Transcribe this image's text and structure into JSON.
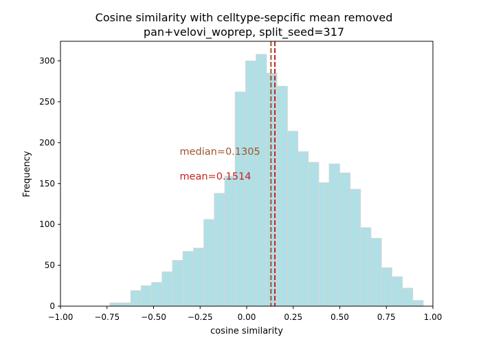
{
  "chart_data": {
    "type": "bar",
    "title_line1": "Cosine similarity with celltype-sepcific mean removed",
    "title_line2": "pan+velovi_woprep, split_seed=317",
    "xlabel": "cosine similarity",
    "ylabel": "Frequency",
    "xlim": [
      -1.0,
      1.0
    ],
    "ylim": [
      0,
      324
    ],
    "xticks": [
      -1.0,
      -0.75,
      -0.5,
      -0.25,
      0.0,
      0.25,
      0.5,
      0.75,
      1.0
    ],
    "xtick_labels": [
      "−1.00",
      "−0.75",
      "−0.50",
      "−0.25",
      "0.00",
      "0.25",
      "0.50",
      "0.75",
      "1.00"
    ],
    "yticks": [
      0,
      50,
      100,
      150,
      200,
      250,
      300
    ],
    "ytick_labels": [
      "0",
      "50",
      "100",
      "150",
      "200",
      "250",
      "300"
    ],
    "bin_width": 0.0561,
    "bins": [
      {
        "x0": -0.7349,
        "count": 4
      },
      {
        "x0": -0.6788,
        "count": 4
      },
      {
        "x0": -0.6227,
        "count": 19
      },
      {
        "x0": -0.5666,
        "count": 25
      },
      {
        "x0": -0.5105,
        "count": 29
      },
      {
        "x0": -0.4544,
        "count": 42
      },
      {
        "x0": -0.3983,
        "count": 56
      },
      {
        "x0": -0.3422,
        "count": 67
      },
      {
        "x0": -0.2861,
        "count": 71
      },
      {
        "x0": -0.23,
        "count": 106
      },
      {
        "x0": -0.1739,
        "count": 138
      },
      {
        "x0": -0.1178,
        "count": 159
      },
      {
        "x0": -0.0617,
        "count": 262
      },
      {
        "x0": -0.0056,
        "count": 300
      },
      {
        "x0": 0.0505,
        "count": 308
      },
      {
        "x0": 0.1066,
        "count": 285
      },
      {
        "x0": 0.1627,
        "count": 269
      },
      {
        "x0": 0.2188,
        "count": 214
      },
      {
        "x0": 0.2749,
        "count": 189
      },
      {
        "x0": 0.331,
        "count": 176
      },
      {
        "x0": 0.3871,
        "count": 151
      },
      {
        "x0": 0.4432,
        "count": 174
      },
      {
        "x0": 0.4993,
        "count": 163
      },
      {
        "x0": 0.5554,
        "count": 143
      },
      {
        "x0": 0.6115,
        "count": 96
      },
      {
        "x0": 0.6676,
        "count": 83
      },
      {
        "x0": 0.7237,
        "count": 47
      },
      {
        "x0": 0.7798,
        "count": 36
      },
      {
        "x0": 0.8359,
        "count": 22
      },
      {
        "x0": 0.892,
        "count": 7
      }
    ],
    "median": {
      "value": 0.1305,
      "label": "median=0.1305",
      "color": "#a0522d"
    },
    "mean": {
      "value": 0.1514,
      "label": "mean=0.1514",
      "color": "#c8201e"
    },
    "bar_color": "#b0dfe5",
    "grid": false
  }
}
